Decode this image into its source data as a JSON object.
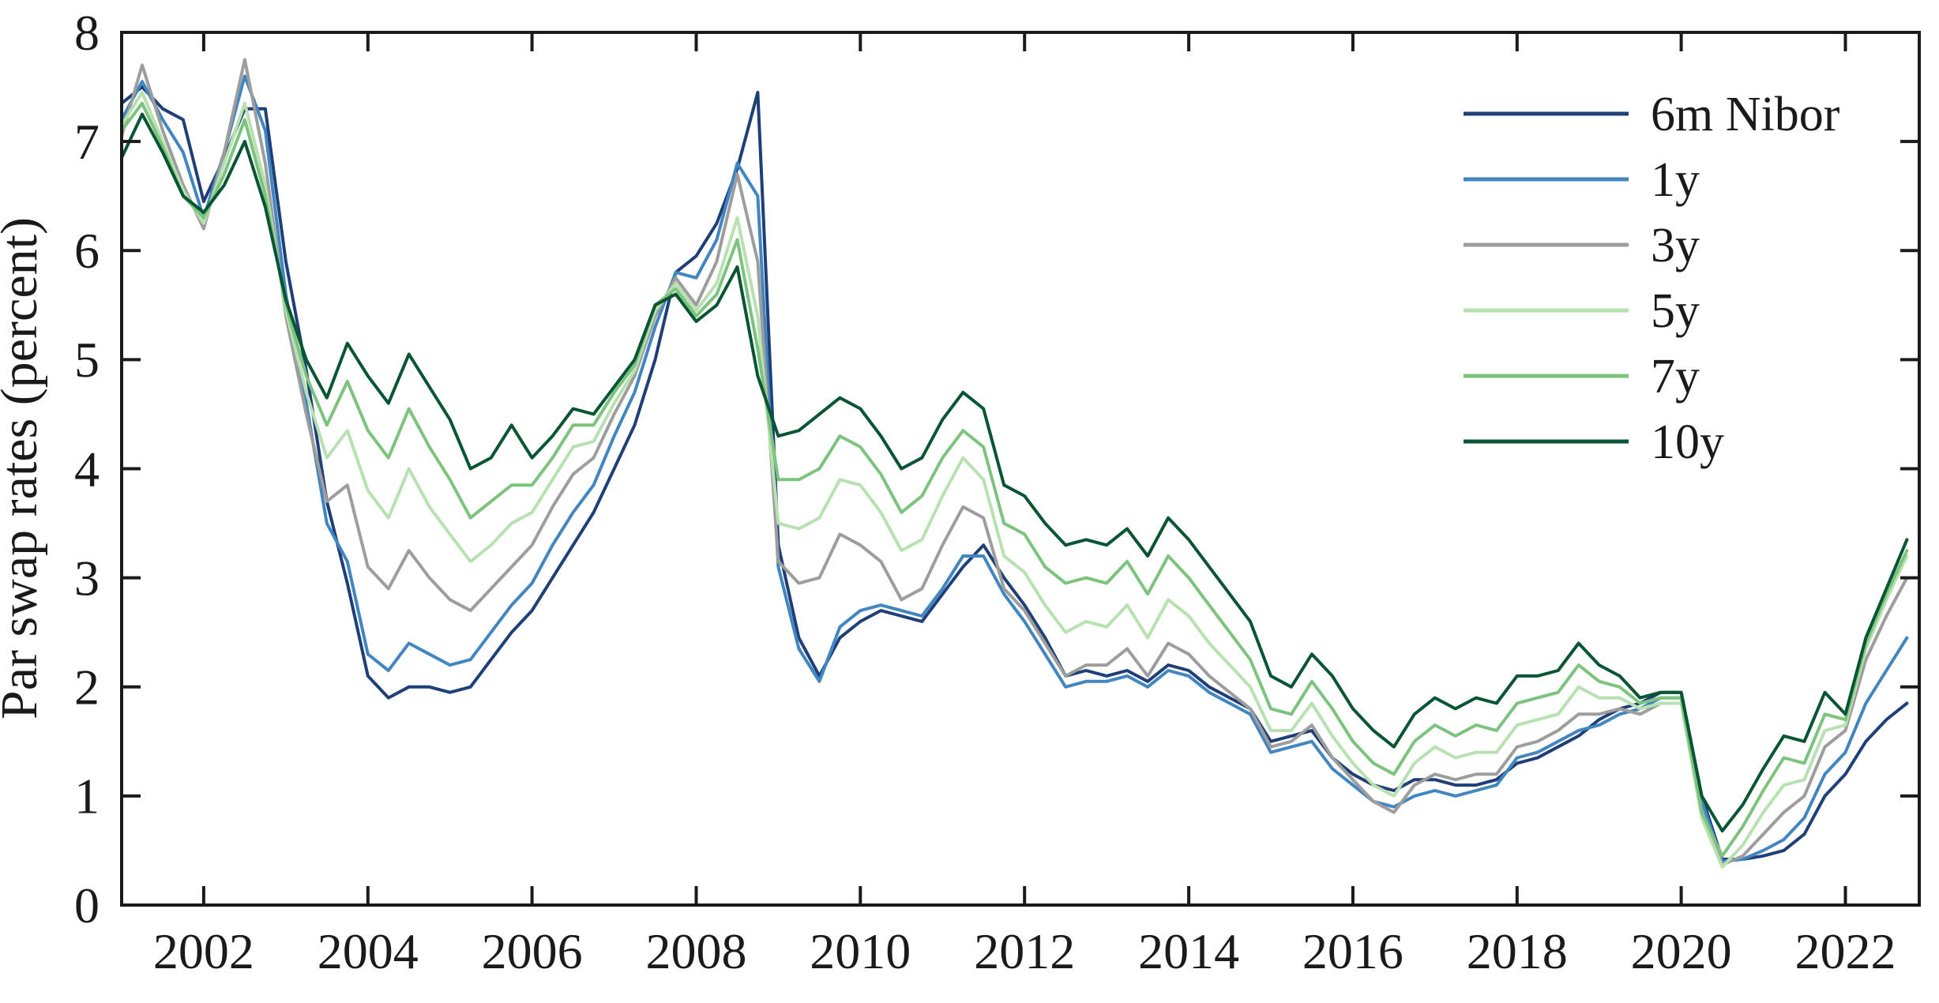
{
  "figure": {
    "background": "#ffffff",
    "axis_color": "#1a1a1a"
  },
  "chart_data": {
    "type": "line",
    "title": "",
    "xlabel": "",
    "ylabel": "Par swap rates (percent)",
    "xlim": [
      2001.0,
      2022.9
    ],
    "ylim": [
      0,
      8
    ],
    "x_ticks": [
      2002,
      2004,
      2006,
      2008,
      2010,
      2012,
      2014,
      2016,
      2018,
      2020,
      2022
    ],
    "y_ticks": [
      0,
      1,
      2,
      3,
      4,
      5,
      6,
      7,
      8
    ],
    "grid": false,
    "box": true,
    "legend_position": "top-right",
    "x": [
      2001.0,
      2001.25,
      2001.5,
      2001.75,
      2002.0,
      2002.25,
      2002.5,
      2002.75,
      2003.0,
      2003.25,
      2003.5,
      2003.75,
      2004.0,
      2004.25,
      2004.5,
      2004.75,
      2005.0,
      2005.25,
      2005.5,
      2005.75,
      2006.0,
      2006.25,
      2006.5,
      2006.75,
      2007.0,
      2007.25,
      2007.5,
      2007.75,
      2008.0,
      2008.25,
      2008.5,
      2008.75,
      2009.0,
      2009.25,
      2009.5,
      2009.75,
      2010.0,
      2010.25,
      2010.5,
      2010.75,
      2011.0,
      2011.25,
      2011.5,
      2011.75,
      2012.0,
      2012.25,
      2012.5,
      2012.75,
      2013.0,
      2013.25,
      2013.5,
      2013.75,
      2014.0,
      2014.25,
      2014.5,
      2014.75,
      2015.0,
      2015.25,
      2015.5,
      2015.75,
      2016.0,
      2016.25,
      2016.5,
      2016.75,
      2017.0,
      2017.25,
      2017.5,
      2017.75,
      2018.0,
      2018.25,
      2018.5,
      2018.75,
      2019.0,
      2019.25,
      2019.5,
      2019.75,
      2020.0,
      2020.25,
      2020.5,
      2020.75,
      2021.0,
      2021.25,
      2021.5,
      2021.75,
      2022.0,
      2022.25,
      2022.5,
      2022.75
    ],
    "series": [
      {
        "name": "6m Nibor",
        "color": "#1e3f77",
        "values": [
          7.35,
          7.5,
          7.3,
          7.2,
          6.45,
          6.85,
          7.3,
          7.3,
          5.9,
          4.9,
          3.7,
          2.95,
          2.1,
          1.9,
          2.0,
          2.0,
          1.95,
          2.0,
          2.25,
          2.5,
          2.7,
          3.0,
          3.3,
          3.6,
          4.0,
          4.4,
          5.0,
          5.8,
          5.95,
          6.25,
          6.75,
          7.45,
          3.3,
          2.45,
          2.1,
          2.45,
          2.6,
          2.7,
          2.65,
          2.6,
          2.85,
          3.1,
          3.3,
          3.0,
          2.75,
          2.45,
          2.1,
          2.15,
          2.1,
          2.15,
          2.05,
          2.2,
          2.15,
          2.0,
          1.9,
          1.8,
          1.5,
          1.55,
          1.6,
          1.35,
          1.2,
          1.1,
          1.05,
          1.15,
          1.15,
          1.1,
          1.1,
          1.15,
          1.3,
          1.35,
          1.45,
          1.55,
          1.7,
          1.8,
          1.85,
          1.95,
          1.95,
          1.0,
          0.42,
          0.42,
          0.45,
          0.5,
          0.65,
          1.0,
          1.2,
          1.5,
          1.7,
          1.85
        ]
      },
      {
        "name": "1y",
        "color": "#4286c1",
        "values": [
          7.2,
          7.55,
          7.2,
          6.9,
          6.3,
          6.9,
          7.6,
          7.1,
          5.6,
          4.6,
          3.5,
          3.15,
          2.3,
          2.15,
          2.4,
          2.3,
          2.2,
          2.25,
          2.5,
          2.75,
          2.95,
          3.3,
          3.6,
          3.85,
          4.3,
          4.7,
          5.3,
          5.8,
          5.75,
          6.1,
          6.8,
          6.5,
          3.1,
          2.35,
          2.05,
          2.55,
          2.7,
          2.75,
          2.7,
          2.65,
          2.9,
          3.2,
          3.2,
          2.85,
          2.6,
          2.3,
          2.0,
          2.05,
          2.05,
          2.1,
          2.0,
          2.15,
          2.1,
          1.95,
          1.85,
          1.75,
          1.4,
          1.45,
          1.5,
          1.25,
          1.1,
          0.95,
          0.9,
          1.0,
          1.05,
          1.0,
          1.05,
          1.1,
          1.35,
          1.4,
          1.5,
          1.6,
          1.65,
          1.75,
          1.8,
          1.9,
          1.9,
          0.95,
          0.4,
          0.42,
          0.5,
          0.6,
          0.8,
          1.2,
          1.4,
          1.85,
          2.15,
          2.45
        ]
      },
      {
        "name": "3y",
        "color": "#9d9d9d",
        "values": [
          7.05,
          7.7,
          7.1,
          6.6,
          6.2,
          6.9,
          7.75,
          6.8,
          5.4,
          4.5,
          3.7,
          3.85,
          3.1,
          2.9,
          3.25,
          3.0,
          2.8,
          2.7,
          2.9,
          3.1,
          3.3,
          3.65,
          3.95,
          4.1,
          4.5,
          4.85,
          5.4,
          5.75,
          5.5,
          5.9,
          6.7,
          5.9,
          3.15,
          2.95,
          3.0,
          3.4,
          3.3,
          3.15,
          2.8,
          2.9,
          3.3,
          3.65,
          3.55,
          2.9,
          2.7,
          2.4,
          2.1,
          2.2,
          2.2,
          2.35,
          2.1,
          2.4,
          2.3,
          2.1,
          1.95,
          1.8,
          1.45,
          1.5,
          1.65,
          1.35,
          1.15,
          0.95,
          0.85,
          1.1,
          1.2,
          1.15,
          1.2,
          1.2,
          1.45,
          1.5,
          1.6,
          1.75,
          1.75,
          1.8,
          1.75,
          1.85,
          1.85,
          0.85,
          0.37,
          0.45,
          0.65,
          0.85,
          1.0,
          1.45,
          1.6,
          2.25,
          2.65,
          3.0
        ]
      },
      {
        "name": "5y",
        "color": "#b7e1b1",
        "values": [
          7.15,
          7.45,
          7.0,
          6.55,
          6.25,
          6.8,
          7.35,
          6.6,
          5.45,
          4.7,
          4.1,
          4.35,
          3.8,
          3.55,
          4.0,
          3.65,
          3.4,
          3.15,
          3.3,
          3.5,
          3.6,
          3.9,
          4.2,
          4.25,
          4.6,
          4.9,
          5.45,
          5.7,
          5.45,
          5.7,
          6.3,
          5.4,
          3.5,
          3.45,
          3.55,
          3.9,
          3.85,
          3.6,
          3.25,
          3.35,
          3.75,
          4.1,
          3.9,
          3.2,
          3.05,
          2.75,
          2.5,
          2.6,
          2.55,
          2.75,
          2.45,
          2.8,
          2.65,
          2.4,
          2.2,
          2.0,
          1.6,
          1.6,
          1.85,
          1.55,
          1.3,
          1.1,
          1.0,
          1.3,
          1.45,
          1.35,
          1.4,
          1.4,
          1.65,
          1.7,
          1.75,
          2.0,
          1.9,
          1.9,
          1.8,
          1.85,
          1.85,
          0.8,
          0.35,
          0.55,
          0.85,
          1.1,
          1.15,
          1.6,
          1.65,
          2.35,
          2.8,
          3.2
        ]
      },
      {
        "name": "7y",
        "color": "#7cc47e",
        "values": [
          7.1,
          7.35,
          6.95,
          6.5,
          6.3,
          6.7,
          7.2,
          6.5,
          5.5,
          4.85,
          4.4,
          4.8,
          4.35,
          4.1,
          4.55,
          4.2,
          3.9,
          3.55,
          3.7,
          3.85,
          3.85,
          4.1,
          4.4,
          4.4,
          4.7,
          4.95,
          5.5,
          5.65,
          5.4,
          5.6,
          6.1,
          5.1,
          3.9,
          3.9,
          4.0,
          4.3,
          4.2,
          3.95,
          3.6,
          3.75,
          4.1,
          4.35,
          4.2,
          3.5,
          3.4,
          3.1,
          2.95,
          3.0,
          2.95,
          3.15,
          2.85,
          3.2,
          3.0,
          2.75,
          2.5,
          2.25,
          1.8,
          1.75,
          2.05,
          1.8,
          1.5,
          1.3,
          1.2,
          1.5,
          1.65,
          1.55,
          1.65,
          1.6,
          1.85,
          1.9,
          1.95,
          2.2,
          2.05,
          2.0,
          1.85,
          1.9,
          1.9,
          0.85,
          0.45,
          0.72,
          1.05,
          1.35,
          1.3,
          1.75,
          1.7,
          2.4,
          2.85,
          3.25
        ]
      },
      {
        "name": "10y",
        "color": "#075532",
        "values": [
          6.85,
          7.25,
          6.9,
          6.5,
          6.35,
          6.6,
          7.0,
          6.4,
          5.55,
          5.0,
          4.65,
          5.15,
          4.85,
          4.6,
          5.05,
          4.75,
          4.45,
          4.0,
          4.1,
          4.4,
          4.1,
          4.3,
          4.55,
          4.5,
          4.75,
          5.0,
          5.5,
          5.6,
          5.35,
          5.5,
          5.85,
          4.85,
          4.3,
          4.35,
          4.5,
          4.65,
          4.55,
          4.3,
          4.0,
          4.1,
          4.45,
          4.7,
          4.55,
          3.85,
          3.75,
          3.5,
          3.3,
          3.35,
          3.3,
          3.45,
          3.2,
          3.55,
          3.35,
          3.1,
          2.85,
          2.6,
          2.1,
          2.0,
          2.3,
          2.1,
          1.8,
          1.6,
          1.45,
          1.75,
          1.9,
          1.8,
          1.9,
          1.85,
          2.1,
          2.1,
          2.15,
          2.4,
          2.2,
          2.1,
          1.9,
          1.95,
          1.95,
          1.0,
          0.68,
          0.92,
          1.25,
          1.55,
          1.5,
          1.95,
          1.75,
          2.45,
          2.9,
          3.35
        ]
      }
    ]
  }
}
